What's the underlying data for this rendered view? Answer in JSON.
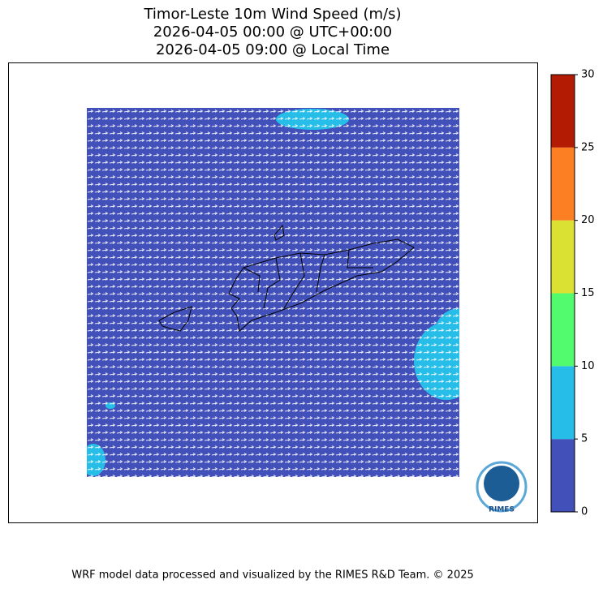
{
  "header": {
    "title": [
      "Timor-Leste 10m Wind Speed (m/s)",
      "2026-04-05 00:00 @ UTC+00:00",
      "2026-04-05 09:00 @ Local Time"
    ]
  },
  "colorbar": {
    "lim": [
      0,
      30
    ],
    "ticks": [
      0,
      5,
      10,
      15,
      20,
      25,
      30
    ],
    "colors": [
      "#4250b9",
      "#26bde8",
      "#52fa6e",
      "#dbe133",
      "#fc7f24",
      "#b31b03"
    ]
  },
  "logo": {
    "label": "RIMES"
  },
  "footer": {
    "text": "WRF model data processed and visualized by the RIMES R&D Team. © 2025"
  }
}
